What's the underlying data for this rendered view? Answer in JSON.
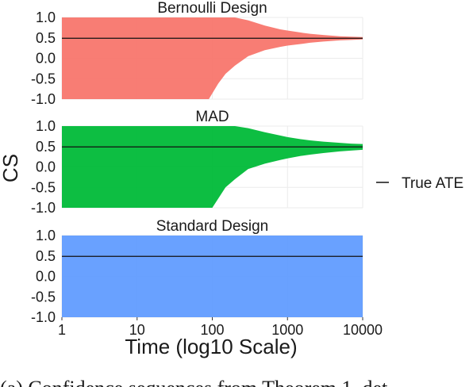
{
  "chart_data": {
    "type": "area",
    "ylabel": "CS",
    "xlabel": "Time (log10 Scale)",
    "x_scale": "log10",
    "xlim": [
      1,
      10000
    ],
    "ylim": [
      -1.0,
      1.0
    ],
    "x_ticks": [
      "1",
      "10",
      "100",
      "1000",
      "10000"
    ],
    "y_ticks": [
      "1.0",
      "0.5",
      "0.0",
      "-0.5",
      "-1.0"
    ],
    "legend": {
      "position": "right",
      "entries": [
        "True ATE"
      ]
    },
    "true_ate": 0.49,
    "panels": [
      {
        "title": "Bernoulli Design",
        "color": "#F8766D",
        "time": [
          1,
          10,
          50,
          90,
          120,
          150,
          200,
          300,
          500,
          800,
          1000,
          1500,
          2000,
          3000,
          5000,
          7000,
          10000
        ],
        "upper": [
          1.0,
          1.0,
          1.0,
          1.0,
          1.0,
          1.0,
          1.0,
          0.93,
          0.8,
          0.71,
          0.68,
          0.63,
          0.6,
          0.57,
          0.54,
          0.53,
          0.52
        ],
        "lower": [
          -1.0,
          -1.0,
          -1.0,
          -1.0,
          -0.62,
          -0.38,
          -0.18,
          0.05,
          0.2,
          0.28,
          0.31,
          0.35,
          0.38,
          0.41,
          0.44,
          0.45,
          0.46
        ]
      },
      {
        "title": "MAD",
        "color": "#00BA38",
        "time": [
          1,
          10,
          50,
          100,
          150,
          200,
          300,
          500,
          800,
          1000,
          1500,
          2000,
          3000,
          5000,
          7000,
          10000
        ],
        "upper": [
          1.0,
          1.0,
          1.0,
          1.0,
          1.0,
          1.0,
          0.95,
          0.85,
          0.77,
          0.73,
          0.68,
          0.65,
          0.62,
          0.59,
          0.57,
          0.56
        ],
        "lower": [
          -1.0,
          -1.0,
          -1.0,
          -1.0,
          -0.5,
          -0.3,
          -0.05,
          0.08,
          0.17,
          0.21,
          0.27,
          0.3,
          0.34,
          0.38,
          0.4,
          0.42
        ]
      },
      {
        "title": "Standard Design",
        "color": "#619CFF",
        "time": [
          1,
          10000
        ],
        "upper": [
          1.0,
          1.0
        ],
        "lower": [
          -1.0,
          -1.0
        ]
      }
    ]
  },
  "caption": "(a) Confidence sequences from Theorem 1, det"
}
